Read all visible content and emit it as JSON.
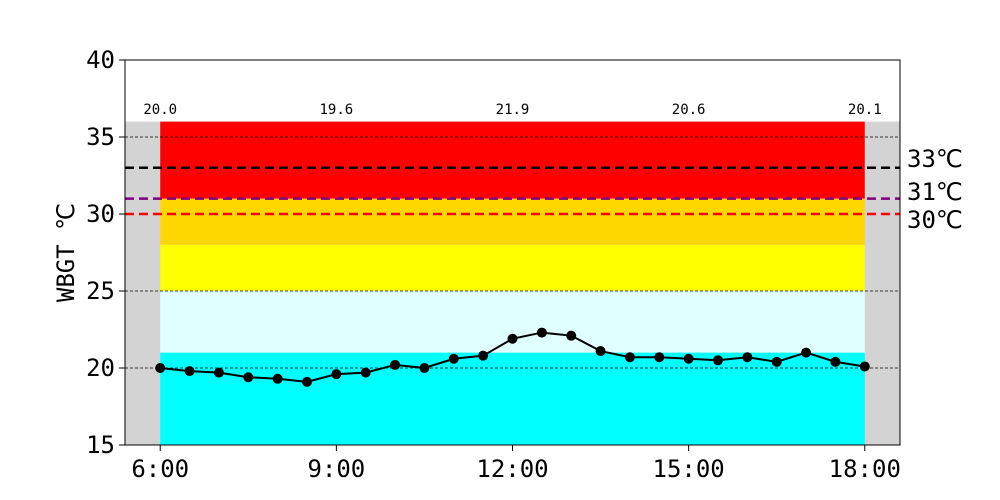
{
  "chart_data": {
    "type": "line",
    "xlabel": "",
    "ylabel": "WBGT ℃",
    "xlim": [
      5.4,
      18.6
    ],
    "ylim": [
      15,
      40
    ],
    "x_ticks": [
      {
        "x": 6,
        "label": "6:00"
      },
      {
        "x": 9,
        "label": "9:00"
      },
      {
        "x": 12,
        "label": "12:00"
      },
      {
        "x": 15,
        "label": "15:00"
      },
      {
        "x": 18,
        "label": "18:00"
      }
    ],
    "y_ticks": [
      15,
      20,
      25,
      30,
      35,
      40
    ],
    "y_tick_labels": [
      "15",
      "20",
      "25",
      "30",
      "35",
      "40"
    ],
    "grid_y": [
      20,
      25,
      35
    ],
    "top_labels": [
      {
        "x": 6,
        "label": "20.0"
      },
      {
        "x": 9,
        "label": "19.6"
      },
      {
        "x": 12,
        "label": "21.9"
      },
      {
        "x": 15,
        "label": "20.6"
      },
      {
        "x": 18,
        "label": "20.1"
      }
    ],
    "background": {
      "color": "#d3d3d3",
      "x_range": [
        5.4,
        18.6
      ],
      "y_range": [
        15,
        36
      ]
    },
    "bands": [
      {
        "y0": 15,
        "y1": 21,
        "color": "#00ffff"
      },
      {
        "y0": 21,
        "y1": 25,
        "color": "#e0ffff"
      },
      {
        "y0": 25,
        "y1": 28,
        "color": "#ffff00"
      },
      {
        "y0": 28,
        "y1": 31,
        "color": "#ffd700"
      },
      {
        "y0": 31,
        "y1": 36,
        "color": "#ff0000"
      }
    ],
    "band_x_range": [
      6,
      18
    ],
    "thresholds": [
      {
        "y": 33,
        "label": "33℃",
        "color": "#000000"
      },
      {
        "y": 31,
        "label": "31℃",
        "color": "#800080"
      },
      {
        "y": 30,
        "label": "30℃",
        "color": "#ff0000"
      }
    ],
    "series": [
      {
        "color": "#000000",
        "x": [
          6,
          6.5,
          7,
          7.5,
          8,
          8.5,
          9,
          9.5,
          10,
          10.5,
          11,
          11.5,
          12,
          12.5,
          13,
          13.5,
          14,
          14.5,
          15,
          15.5,
          16,
          16.5,
          17,
          17.5,
          18
        ],
        "y": [
          20.0,
          19.8,
          19.7,
          19.4,
          19.3,
          19.1,
          19.6,
          19.7,
          20.2,
          20.0,
          20.6,
          20.8,
          21.9,
          22.3,
          22.1,
          21.1,
          20.7,
          20.7,
          20.6,
          20.5,
          20.7,
          20.4,
          21.0,
          20.4,
          20.1
        ]
      }
    ]
  }
}
